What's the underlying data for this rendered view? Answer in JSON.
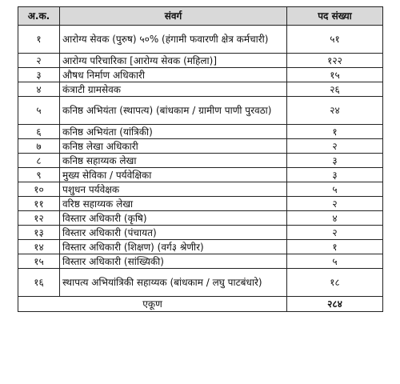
{
  "table": {
    "headers": [
      "अ.क.",
      "संवर्ग",
      "पद संख्या"
    ],
    "rows": [
      {
        "num": "१",
        "desc": "आरोग्य सेवक (पुरुष) ५०% (हंगामी फवारणी क्षेत्र कर्मचारी)",
        "count": "५१",
        "lines": 2
      },
      {
        "num": "२",
        "desc": "आरोग्य परिचारिका [आरोग्य सेवक (महिला)]",
        "count": "१२२",
        "lines": 1
      },
      {
        "num": "३",
        "desc": "औषध निर्माण अधिकारी",
        "count": "१५",
        "lines": 1
      },
      {
        "num": "४",
        "desc": "कंत्राटी ग्रामसेवक",
        "count": "२६",
        "lines": 1
      },
      {
        "num": "५",
        "desc": "कनिष्ठ अभियंता (स्थापत्य) (बांधकाम / ग्रामीण पाणी पुरवठा)",
        "count": "२४",
        "lines": 2
      },
      {
        "num": "६",
        "desc": "कनिष्ठ अभियंता (यांत्रिकी)",
        "count": "१",
        "lines": 1
      },
      {
        "num": "७",
        "desc": "कनिष्ठ लेखा अधिकारी",
        "count": "२",
        "lines": 1
      },
      {
        "num": "८",
        "desc": "कनिष्ठ सहाय्यक लेखा",
        "count": "३",
        "lines": 1
      },
      {
        "num": "९",
        "desc": "मुख्य सेविका / पर्यवेक्षिका",
        "count": "३",
        "lines": 1
      },
      {
        "num": "१०",
        "desc": "पशुधन पर्यवेक्षक",
        "count": "५",
        "lines": 1
      },
      {
        "num": "११",
        "desc": "वरिष्ठ सहाय्यक लेखा",
        "count": "२",
        "lines": 1
      },
      {
        "num": "१२",
        "desc": "विस्तार अधिकारी (कृषि)",
        "count": "४",
        "lines": 1
      },
      {
        "num": "१३",
        "desc": "विस्तार अधिकारी (पंचायत)",
        "count": "२",
        "lines": 1
      },
      {
        "num": "१४",
        "desc": "विस्तार अधिकारी (शिक्षण) (वर्ग३ श्रेणीर)",
        "count": "१",
        "lines": 1
      },
      {
        "num": "१५",
        "desc": "विस्तार अधिकारी (सांख्यिकी)",
        "count": "५",
        "lines": 1
      },
      {
        "num": "१६",
        "desc": "स्थापत्य अभियांत्रिकी सहाय्यक (बांधकाम / लघु पाटबंधारे)",
        "count": "१८",
        "lines": 2
      }
    ],
    "total": {
      "label": "एकूण",
      "value": "२८४"
    }
  }
}
